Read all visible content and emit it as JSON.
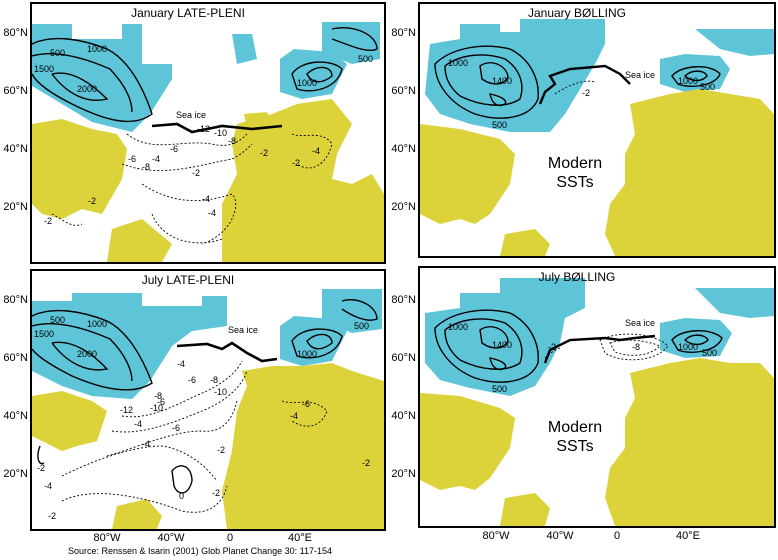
{
  "panels": [
    {
      "title": "January LATE-PLENI",
      "sea_ice": "Sea ice",
      "contour_labels": [
        "500",
        "1500",
        "1000",
        "2000",
        "1000",
        "500",
        "-10",
        "-12",
        "-8",
        "-6",
        "-4",
        "-2",
        "-8",
        "-6",
        "-4",
        "-2",
        "-4",
        "-2",
        "-2",
        "-2",
        "-4"
      ]
    },
    {
      "title": "January BØLLING",
      "sea_ice": "Sea ice",
      "sst": "Modern SSTs",
      "contour_labels": [
        "1000",
        "1400",
        "500",
        "1000",
        "500",
        "-2"
      ]
    },
    {
      "title": "July LATE-PLENI",
      "sea_ice": "Sea ice",
      "contour_labels": [
        "500",
        "1000",
        "1500",
        "2000",
        "1000",
        "500",
        "-4",
        "-6",
        "-8",
        "-10",
        "-12",
        "-6",
        "-8",
        "-10",
        "-4",
        "-6",
        "-6",
        "-4",
        "-4",
        "-2",
        "-2",
        "-2",
        "-4",
        "-2",
        "-2",
        "0"
      ]
    },
    {
      "title": "July BØLLING",
      "sea_ice": "Sea ice",
      "sst": "Modern SSTs",
      "contour_labels": [
        "1000",
        "1400",
        "500",
        "-8",
        "-2",
        "1000",
        "500"
      ]
    }
  ],
  "y_axis_labels": [
    "80°N",
    "60°N",
    "40°N",
    "20°N"
  ],
  "x_axis_labels": [
    "80°W",
    "40°W",
    "0",
    "40°E"
  ],
  "source": "Source: Renssen & Isarin (2001) Glob Planet Change 30: 117-154",
  "colors": {
    "ice": "#5ec4d8",
    "land": "#dcd239",
    "ocean": "#ffffff",
    "contour": "#000000"
  }
}
